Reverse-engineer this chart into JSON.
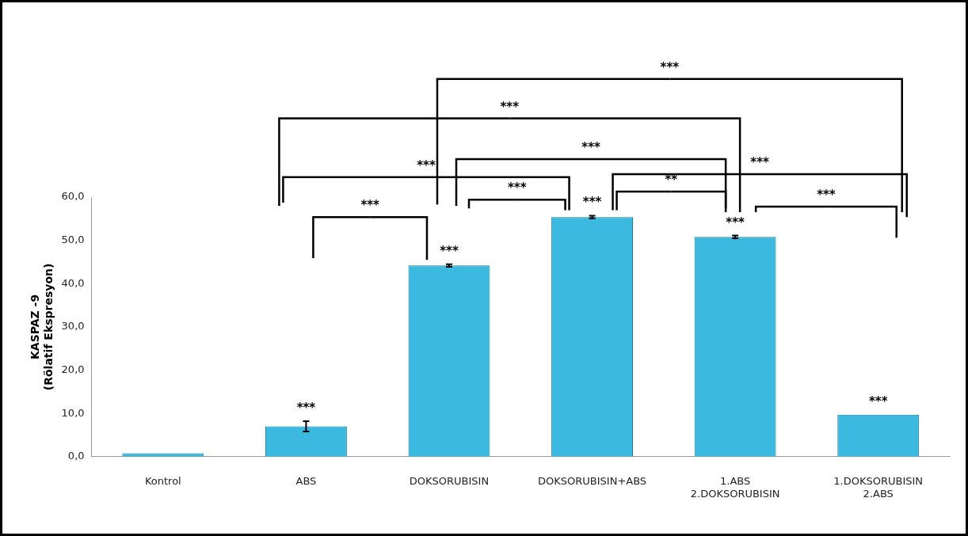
{
  "chart_data": {
    "type": "bar",
    "ylabel": "KASPAZ -9\n(Rölatif Ekspresyon)",
    "categories": [
      "Kontrol",
      "ABS",
      "DOKSORUBISIN",
      "DOKSORUBISIN+ABS",
      "1.ABS\n2.DOKSORUBISIN",
      "1.DOKSORUBISIN\n2.ABS"
    ],
    "values": [
      0.8,
      7.0,
      44.2,
      55.4,
      50.8,
      9.7
    ],
    "errors": [
      null,
      1.2,
      0.3,
      0.3,
      0.3,
      null
    ],
    "color": "#3cb9de",
    "ylim": [
      0,
      60
    ],
    "yticks": [
      {
        "value": 0,
        "label": "0,0"
      },
      {
        "value": 10,
        "label": "10,0"
      },
      {
        "value": 20,
        "label": "20,0"
      },
      {
        "value": 30,
        "label": "30,0"
      },
      {
        "value": 40,
        "label": "40,0"
      },
      {
        "value": 50,
        "label": "50,0"
      },
      {
        "value": 60,
        "label": "60,0"
      }
    ],
    "grid": false,
    "legend": false,
    "annotations": [
      "***",
      "***",
      "***",
      "***",
      "***",
      "***",
      "**",
      "***",
      "***",
      {
        "text": "***",
        "x": "ABS",
        "y": 7.0
      },
      {
        "text": "***",
        "x": "DOKSORUBISIN",
        "y": 44.2
      },
      {
        "text": "***",
        "x": "DOKSORUBISIN+ABS",
        "y": 55.4
      },
      {
        "text": "***",
        "x": "1.ABS\n2.DOKSORUBISIN",
        "y": 50.8
      },
      {
        "text": "***",
        "x": "1.DOKSORUBISIN\n2.ABS",
        "y": 9.7
      }
    ]
  }
}
